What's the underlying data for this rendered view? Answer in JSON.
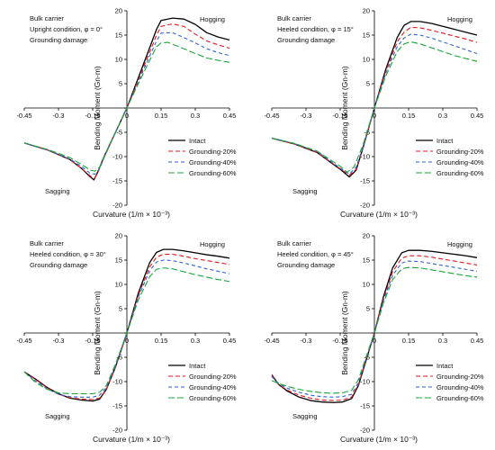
{
  "figure": {
    "title": ""
  },
  "colors": {
    "intact": "#000000",
    "g20": "#e8151b",
    "g40": "#2b63d9",
    "g60": "#19a637"
  },
  "chart_data": [
    {
      "type": "line",
      "annotations": [
        "Bulk carrier",
        "Upright condition, φ = 0°",
        "Grounding damage"
      ],
      "hogging_label": "Hogging",
      "sagging_label": "Sagging",
      "xlabel": "Curvature (1/m × 10⁻³)",
      "ylabel": "Bending Moment (Gn-m)",
      "xlim": [
        -0.45,
        0.45
      ],
      "ylim": [
        -20,
        20
      ],
      "xticks": [
        -0.45,
        -0.3,
        -0.15,
        0,
        0.15,
        0.3,
        0.45
      ],
      "xtick_labels": [
        "-0.45",
        "-0.3",
        "-0.15",
        "0",
        "0.15",
        "0.3",
        "0.45"
      ],
      "yticks": [
        -20,
        -15,
        -10,
        -5,
        0,
        5,
        10,
        15,
        20
      ],
      "ytick_labels": [
        "-20",
        "-15",
        "-10",
        "-5",
        "0",
        "5",
        "10",
        "15",
        "20"
      ],
      "legend_position": "bottom-right",
      "series": [
        {
          "name": "Intact",
          "color": "#000000",
          "dash": "solid",
          "x": [
            -0.45,
            -0.35,
            -0.25,
            -0.2,
            -0.16,
            -0.145,
            -0.13,
            -0.1,
            -0.05,
            0,
            0.05,
            0.1,
            0.13,
            0.15,
            0.2,
            0.25,
            0.3,
            0.35,
            0.4,
            0.45
          ],
          "y": [
            -7.2,
            -8.6,
            -10.6,
            -12.4,
            -14.2,
            -14.8,
            -13.4,
            -10,
            -5,
            0,
            6.2,
            12.4,
            16.2,
            18,
            18.5,
            18.3,
            17.2,
            15.5,
            14.6,
            14
          ]
        },
        {
          "name": "Grounding-20%",
          "color": "#e8151b",
          "dash": "5,3",
          "x": [
            -0.45,
            -0.35,
            -0.25,
            -0.2,
            -0.155,
            -0.14,
            -0.125,
            -0.1,
            -0.05,
            0,
            0.05,
            0.1,
            0.13,
            0.15,
            0.2,
            0.25,
            0.3,
            0.35,
            0.4,
            0.45
          ],
          "y": [
            -7.2,
            -8.6,
            -10.6,
            -12.4,
            -14.2,
            -14.4,
            -13,
            -10.2,
            -5,
            0,
            5.8,
            11.5,
            15,
            16.8,
            17.3,
            16.8,
            15.2,
            13.8,
            13,
            12.3
          ]
        },
        {
          "name": "Grounding-40%",
          "color": "#2b63d9",
          "dash": "4,3",
          "x": [
            -0.45,
            -0.35,
            -0.25,
            -0.2,
            -0.16,
            -0.14,
            -0.12,
            -0.1,
            -0.05,
            0,
            0.05,
            0.1,
            0.13,
            0.15,
            0.2,
            0.25,
            0.3,
            0.35,
            0.4,
            0.45
          ],
          "y": [
            -7.2,
            -8.6,
            -10.5,
            -12,
            -13.5,
            -13.6,
            -12.5,
            -10.2,
            -5,
            0,
            5.4,
            10.7,
            13.8,
            15.4,
            15.5,
            14.5,
            13.4,
            12.2,
            11.4,
            10.8
          ]
        },
        {
          "name": "Grounding-60%",
          "color": "#19a637",
          "dash": "7,3",
          "x": [
            -0.45,
            -0.35,
            -0.25,
            -0.2,
            -0.16,
            -0.14,
            -0.12,
            -0.1,
            -0.05,
            0,
            0.05,
            0.1,
            0.13,
            0.15,
            0.18,
            0.25,
            0.3,
            0.35,
            0.4,
            0.45
          ],
          "y": [
            -7.2,
            -8.5,
            -10.2,
            -11.6,
            -12.8,
            -13,
            -12.2,
            -10,
            -5,
            0,
            5,
            9.8,
            12.6,
            13.4,
            13.5,
            12.2,
            11.2,
            10.3,
            9.8,
            9.4
          ]
        }
      ]
    },
    {
      "type": "line",
      "annotations": [
        "Bulk carrier",
        "Heeled condition, φ = 15°",
        "Grounding damage"
      ],
      "hogging_label": "Hogging",
      "sagging_label": "Sagging",
      "xlabel": "Curvature (1/m × 10⁻³)",
      "ylabel": "Bending Moment (Gn-m)",
      "xlim": [
        -0.45,
        0.45
      ],
      "ylim": [
        -20,
        20
      ],
      "xticks": [
        -0.45,
        -0.3,
        -0.15,
        0,
        0.15,
        0.3,
        0.45
      ],
      "xtick_labels": [
        "-0.45",
        "-0.3",
        "-0.15",
        "0",
        "0.15",
        "0.3",
        "0.45"
      ],
      "yticks": [
        -20,
        -15,
        -10,
        -5,
        0,
        5,
        10,
        15,
        20
      ],
      "ytick_labels": [
        "-20",
        "-15",
        "-10",
        "-5",
        "0",
        "5",
        "10",
        "15",
        "20"
      ],
      "legend_position": "bottom-right",
      "series": [
        {
          "name": "Intact",
          "color": "#000000",
          "dash": "solid",
          "x": [
            -0.45,
            -0.35,
            -0.25,
            -0.15,
            -0.11,
            -0.08,
            -0.05,
            0,
            0.05,
            0.1,
            0.13,
            0.16,
            0.2,
            0.25,
            0.3,
            0.35,
            0.4,
            0.45
          ],
          "y": [
            -6.2,
            -7.4,
            -9.2,
            -12.6,
            -14.2,
            -12.8,
            -8.2,
            0,
            8,
            14.5,
            17,
            17.8,
            17.8,
            17.4,
            16.8,
            16.2,
            15.6,
            15
          ]
        },
        {
          "name": "Grounding-20%",
          "color": "#e8151b",
          "dash": "5,3",
          "x": [
            -0.45,
            -0.35,
            -0.25,
            -0.15,
            -0.11,
            -0.08,
            -0.05,
            0,
            0.05,
            0.1,
            0.13,
            0.16,
            0.2,
            0.25,
            0.3,
            0.35,
            0.4,
            0.45
          ],
          "y": [
            -6.2,
            -7.4,
            -9.2,
            -12.5,
            -13.8,
            -12.6,
            -8.2,
            0,
            7.6,
            13.6,
            15.6,
            16.6,
            16.5,
            16,
            15.4,
            14.8,
            14.2,
            13.5
          ]
        },
        {
          "name": "Grounding-40%",
          "color": "#2b63d9",
          "dash": "4,3",
          "x": [
            -0.45,
            -0.35,
            -0.25,
            -0.15,
            -0.11,
            -0.08,
            -0.05,
            0,
            0.05,
            0.1,
            0.13,
            0.16,
            0.2,
            0.25,
            0.3,
            0.35,
            0.4,
            0.45
          ],
          "y": [
            -6.2,
            -7.3,
            -9,
            -12.4,
            -13.6,
            -12.2,
            -8,
            0,
            7.2,
            12.6,
            14.4,
            15.2,
            15,
            14.4,
            13.6,
            12.8,
            12,
            11.2
          ]
        },
        {
          "name": "Grounding-60%",
          "color": "#19a637",
          "dash": "7,3",
          "x": [
            -0.45,
            -0.35,
            -0.25,
            -0.15,
            -0.12,
            -0.09,
            -0.05,
            0,
            0.05,
            0.1,
            0.13,
            0.16,
            0.2,
            0.25,
            0.3,
            0.35,
            0.4,
            0.45
          ],
          "y": [
            -6.2,
            -7.3,
            -8.9,
            -12,
            -13.2,
            -12.2,
            -7.6,
            0,
            6.6,
            11.6,
            13.2,
            13.6,
            13.2,
            12.4,
            11.6,
            10.8,
            10.2,
            9.6
          ]
        }
      ]
    },
    {
      "type": "line",
      "annotations": [
        "Bulk carrier",
        "Heeled condition, φ = 30°",
        "Grounding damage"
      ],
      "hogging_label": "Hogging",
      "sagging_label": "Sagging",
      "xlabel": "Curvature (1/m × 10⁻³)",
      "ylabel": "Bending Moment (Gn-m)",
      "xlim": [
        -0.45,
        0.45
      ],
      "ylim": [
        -20,
        20
      ],
      "xticks": [
        -0.45,
        -0.3,
        -0.15,
        0,
        0.15,
        0.3,
        0.45
      ],
      "xtick_labels": [
        "-0.45",
        "-0.3",
        "-0.15",
        "0",
        "0.15",
        "0.3",
        "0.45"
      ],
      "yticks": [
        -20,
        -15,
        -10,
        -5,
        0,
        5,
        10,
        15,
        20
      ],
      "ytick_labels": [
        "-20",
        "-15",
        "-10",
        "-5",
        "0",
        "5",
        "10",
        "15",
        "20"
      ],
      "legend_position": "bottom-right",
      "series": [
        {
          "name": "Intact",
          "color": "#000000",
          "dash": "solid",
          "x": [
            -0.45,
            -0.4,
            -0.35,
            -0.3,
            -0.25,
            -0.2,
            -0.15,
            -0.12,
            -0.09,
            -0.05,
            0,
            0.05,
            0.1,
            0.13,
            0.16,
            0.2,
            0.25,
            0.3,
            0.35,
            0.4,
            0.45
          ],
          "y": [
            -8,
            -9.5,
            -11.2,
            -12.5,
            -13.4,
            -13.8,
            -14,
            -13.6,
            -11.6,
            -7,
            0,
            8.2,
            14.5,
            16.6,
            17.2,
            17.2,
            16.9,
            16.5,
            16.1,
            15.8,
            15.4
          ]
        },
        {
          "name": "Grounding-20%",
          "color": "#e8151b",
          "dash": "5,3",
          "x": [
            -0.45,
            -0.4,
            -0.35,
            -0.3,
            -0.25,
            -0.2,
            -0.15,
            -0.12,
            -0.09,
            -0.05,
            0,
            0.05,
            0.1,
            0.13,
            0.16,
            0.2,
            0.25,
            0.3,
            0.35,
            0.4,
            0.45
          ],
          "y": [
            -8,
            -9.6,
            -11.3,
            -12.6,
            -13.3,
            -13.6,
            -13.7,
            -13.4,
            -11.6,
            -7,
            0,
            7.8,
            13.6,
            15.6,
            16.2,
            16.2,
            15.8,
            15.3,
            14.9,
            14.5,
            14.1
          ]
        },
        {
          "name": "Grounding-40%",
          "color": "#2b63d9",
          "dash": "4,3",
          "x": [
            -0.45,
            -0.4,
            -0.35,
            -0.3,
            -0.25,
            -0.2,
            -0.15,
            -0.12,
            -0.09,
            -0.05,
            0,
            0.05,
            0.1,
            0.13,
            0.16,
            0.2,
            0.25,
            0.3,
            0.35,
            0.4,
            0.45
          ],
          "y": [
            -8,
            -9.9,
            -11.5,
            -12.6,
            -13.1,
            -13.2,
            -13.2,
            -12.8,
            -11.2,
            -6.8,
            0,
            7.4,
            12.8,
            14.6,
            15,
            14.9,
            14.4,
            13.8,
            13.2,
            12.7,
            12.2
          ]
        },
        {
          "name": "Grounding-60%",
          "color": "#19a637",
          "dash": "7,3",
          "x": [
            -0.45,
            -0.4,
            -0.35,
            -0.3,
            -0.25,
            -0.2,
            -0.15,
            -0.12,
            -0.09,
            -0.05,
            0,
            0.05,
            0.1,
            0.13,
            0.16,
            0.2,
            0.25,
            0.3,
            0.35,
            0.4,
            0.45
          ],
          "y": [
            -8,
            -10.2,
            -11.6,
            -12.3,
            -12.5,
            -12.5,
            -12.5,
            -12.2,
            -10.8,
            -6.4,
            0,
            6.8,
            11.6,
            13.1,
            13.4,
            13.2,
            12.6,
            12,
            11.5,
            11,
            10.6
          ]
        }
      ]
    },
    {
      "type": "line",
      "annotations": [
        "Bulk carrier",
        "Heeled condition, φ = 45°",
        "Grounding damage"
      ],
      "hogging_label": "Hogging",
      "sagging_label": "Sagging",
      "xlabel": "Curvature (1/m × 10⁻³)",
      "ylabel": "Bending Moment (Gn-m)",
      "xlim": [
        -0.45,
        0.45
      ],
      "ylim": [
        -20,
        20
      ],
      "xticks": [
        -0.45,
        -0.3,
        -0.15,
        0,
        0.15,
        0.3,
        0.45
      ],
      "xtick_labels": [
        "-0.45",
        "-0.3",
        "-0.15",
        "0",
        "0.15",
        "0.3",
        "0.45"
      ],
      "yticks": [
        -20,
        -15,
        -10,
        -5,
        0,
        5,
        10,
        15,
        20
      ],
      "ytick_labels": [
        "-20",
        "-15",
        "-10",
        "-5",
        "0",
        "5",
        "10",
        "15",
        "20"
      ],
      "legend_position": "bottom-right",
      "series": [
        {
          "name": "Intact",
          "color": "#000000",
          "dash": "solid",
          "x": [
            -0.45,
            -0.42,
            -0.38,
            -0.33,
            -0.28,
            -0.23,
            -0.18,
            -0.14,
            -0.1,
            -0.07,
            -0.04,
            0,
            0.04,
            0.08,
            0.12,
            0.15,
            0.2,
            0.25,
            0.3,
            0.35,
            0.4,
            0.45
          ],
          "y": [
            -8.6,
            -10.6,
            -12,
            -13.2,
            -13.9,
            -14.2,
            -14.3,
            -14.2,
            -13.5,
            -10.8,
            -6.2,
            0,
            7.5,
            13.4,
            16.5,
            17,
            17,
            16.8,
            16.5,
            16.2,
            15.9,
            15.5
          ]
        },
        {
          "name": "Grounding-20%",
          "color": "#e8151b",
          "dash": "5,3",
          "x": [
            -0.45,
            -0.42,
            -0.38,
            -0.33,
            -0.28,
            -0.23,
            -0.18,
            -0.14,
            -0.1,
            -0.07,
            -0.04,
            0,
            0.04,
            0.08,
            0.12,
            0.15,
            0.2,
            0.25,
            0.3,
            0.35,
            0.4,
            0.45
          ],
          "y": [
            -8.8,
            -10.6,
            -11.8,
            -12.8,
            -13.4,
            -13.8,
            -13.9,
            -13.8,
            -13.2,
            -10.6,
            -6,
            0,
            7.1,
            12.6,
            15.4,
            15.9,
            15.9,
            15.6,
            15.2,
            14.8,
            14.4,
            14
          ]
        },
        {
          "name": "Grounding-40%",
          "color": "#2b63d9",
          "dash": "4,3",
          "x": [
            -0.45,
            -0.42,
            -0.38,
            -0.33,
            -0.28,
            -0.23,
            -0.18,
            -0.14,
            -0.1,
            -0.07,
            -0.04,
            0,
            0.04,
            0.08,
            0.12,
            0.15,
            0.2,
            0.25,
            0.3,
            0.35,
            0.4,
            0.45
          ],
          "y": [
            -9,
            -10.4,
            -11.4,
            -12.2,
            -12.8,
            -13.1,
            -13.2,
            -13.1,
            -12.6,
            -10.2,
            -5.8,
            0,
            6.7,
            11.9,
            14.4,
            14.8,
            14.7,
            14.3,
            13.9,
            13.5,
            13.1,
            12.7
          ]
        },
        {
          "name": "Grounding-60%",
          "color": "#19a637",
          "dash": "7,3",
          "x": [
            -0.45,
            -0.42,
            -0.38,
            -0.33,
            -0.28,
            -0.23,
            -0.18,
            -0.14,
            -0.1,
            -0.07,
            -0.04,
            0,
            0.04,
            0.08,
            0.12,
            0.15,
            0.2,
            0.25,
            0.3,
            0.35,
            0.4,
            0.45
          ],
          "y": [
            -9.8,
            -10.4,
            -11,
            -11.6,
            -12,
            -12.3,
            -12.4,
            -12.3,
            -11.8,
            -9.6,
            -5.4,
            0,
            6.2,
            11,
            13.2,
            13.5,
            13.4,
            13,
            12.6,
            12.2,
            11.8,
            11.5
          ]
        }
      ]
    }
  ]
}
